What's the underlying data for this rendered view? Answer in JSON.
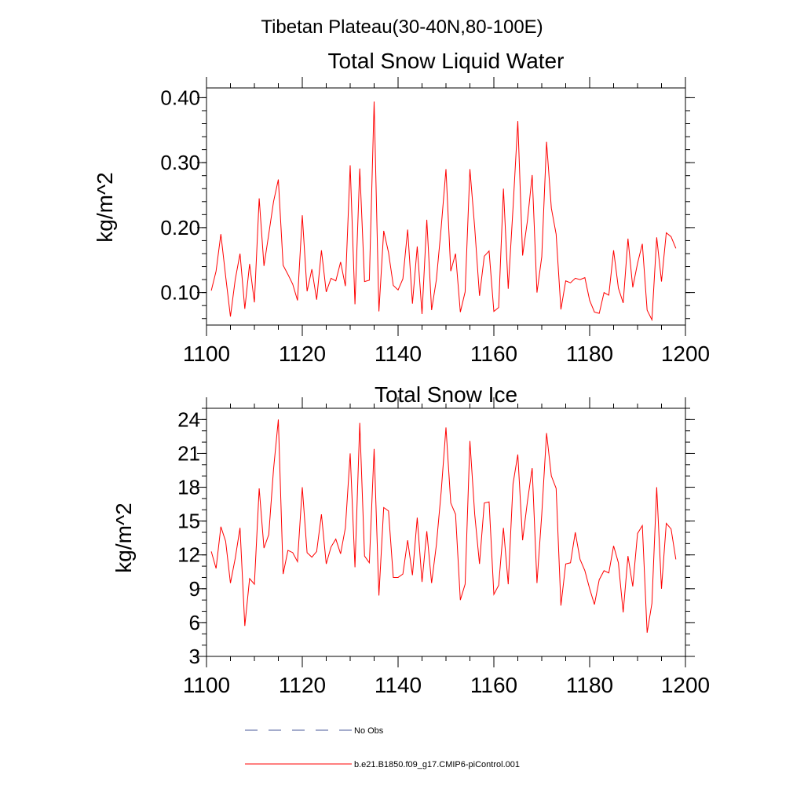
{
  "suptitle": "Tibetan Plateau(30-40N,80-100E)",
  "legend": {
    "obs_label": "No Obs",
    "model_label": "b.e21.B1850.f09_g17.CMIP6-piControl.001",
    "obs_color": "#4a5a9a",
    "model_color": "#ff0000"
  },
  "chart_data": [
    {
      "type": "line",
      "title": "Total Snow Liquid Water",
      "xlabel": "",
      "ylabel": "kg/m^2",
      "xlim": [
        1100,
        1200
      ],
      "ylim": [
        0.05,
        0.415
      ],
      "xticks": [
        1100,
        1120,
        1140,
        1160,
        1180,
        1200
      ],
      "xtick_labels": [
        "1100",
        "1120",
        "1140",
        "1160",
        "1180",
        "1200"
      ],
      "yticks": [
        0.1,
        0.2,
        0.3,
        0.4
      ],
      "ytick_labels": [
        "0.10",
        "0.20",
        "0.30",
        "0.40"
      ],
      "yminor_step": 0.02,
      "series": [
        {
          "name": "b.e21.B1850.f09_g17.CMIP6-piControl.001",
          "color": "#ff0000",
          "x_start": 1101,
          "x_step": 1,
          "values": [
            0.103,
            0.133,
            0.19,
            0.125,
            0.063,
            0.12,
            0.16,
            0.075,
            0.144,
            0.085,
            0.245,
            0.141,
            0.19,
            0.24,
            0.274,
            0.142,
            0.128,
            0.113,
            0.088,
            0.219,
            0.102,
            0.136,
            0.089,
            0.165,
            0.101,
            0.122,
            0.118,
            0.147,
            0.11,
            0.296,
            0.082,
            0.291,
            0.117,
            0.119,
            0.394,
            0.071,
            0.195,
            0.162,
            0.111,
            0.104,
            0.121,
            0.197,
            0.083,
            0.171,
            0.067,
            0.212,
            0.073,
            0.12,
            0.2,
            0.29,
            0.133,
            0.16,
            0.07,
            0.101,
            0.29,
            0.2,
            0.095,
            0.156,
            0.164,
            0.071,
            0.077,
            0.26,
            0.106,
            0.23,
            0.364,
            0.157,
            0.21,
            0.281,
            0.1,
            0.155,
            0.332,
            0.23,
            0.19,
            0.074,
            0.118,
            0.115,
            0.122,
            0.12,
            0.123,
            0.088,
            0.07,
            0.068,
            0.1,
            0.096,
            0.165,
            0.107,
            0.084,
            0.183,
            0.108,
            0.145,
            0.175,
            0.073,
            0.058,
            0.185,
            0.117,
            0.192,
            0.186,
            0.168
          ]
        }
      ]
    },
    {
      "type": "line",
      "title": "Total Snow Ice",
      "xlabel": "",
      "ylabel": "kg/m^2",
      "xlim": [
        1100,
        1200
      ],
      "ylim": [
        3,
        25
      ],
      "xticks": [
        1100,
        1120,
        1140,
        1160,
        1180,
        1200
      ],
      "xtick_labels": [
        "1100",
        "1120",
        "1140",
        "1160",
        "1180",
        "1200"
      ],
      "yticks": [
        3,
        6,
        9,
        12,
        15,
        18,
        21,
        24
      ],
      "ytick_labels": [
        "3",
        "6",
        "9",
        "12",
        "15",
        "18",
        "21",
        "24"
      ],
      "yminor_step": 1,
      "series": [
        {
          "name": "b.e21.B1850.f09_g17.CMIP6-piControl.001",
          "color": "#ff0000",
          "x_start": 1101,
          "x_step": 1,
          "values": [
            12.3,
            10.8,
            14.5,
            13.2,
            9.5,
            11.7,
            14.4,
            5.7,
            9.9,
            9.4,
            17.9,
            12.6,
            13.8,
            19.6,
            24.0,
            10.3,
            12.4,
            12.2,
            11.4,
            18.0,
            12.2,
            11.8,
            12.3,
            15.6,
            11.2,
            12.7,
            13.4,
            12.1,
            14.4,
            21.0,
            10.9,
            23.7,
            11.9,
            11.3,
            21.4,
            8.4,
            16.2,
            15.9,
            10.0,
            10.0,
            10.3,
            13.3,
            10.2,
            15.3,
            9.6,
            14.1,
            9.5,
            12.9,
            17.6,
            23.3,
            16.6,
            15.6,
            8.0,
            9.4,
            22.1,
            15.6,
            11.2,
            16.6,
            16.7,
            8.5,
            9.3,
            14.4,
            9.4,
            18.3,
            20.9,
            13.3,
            16.7,
            19.7,
            9.5,
            15.6,
            22.8,
            19.0,
            17.9,
            7.5,
            11.2,
            11.3,
            14.0,
            11.6,
            10.6,
            9.0,
            7.6,
            9.8,
            10.6,
            10.4,
            12.8,
            11.3,
            6.9,
            11.9,
            9.2,
            13.9,
            14.6,
            5.1,
            7.7,
            18.0,
            9.0,
            14.8,
            14.3,
            11.6
          ]
        }
      ]
    }
  ]
}
